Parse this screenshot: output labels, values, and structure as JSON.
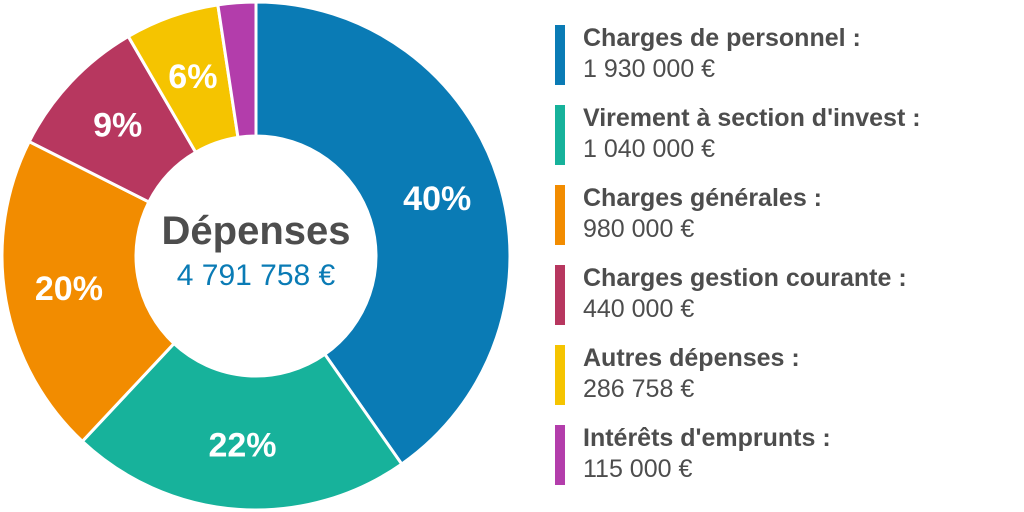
{
  "chart_data": {
    "type": "pie",
    "center": {
      "title": "Dépenses",
      "total": "4 791 758 €"
    },
    "slices": [
      {
        "name": "Charges de personnel :",
        "value": 1930000,
        "value_label": "1 930 000 €",
        "percent_label": "40%",
        "color": "#0a7bb5"
      },
      {
        "name": "Virement à section d'invest :",
        "value": 1040000,
        "value_label": "1 040 000 €",
        "percent_label": "22%",
        "color": "#17b29b"
      },
      {
        "name": "Charges générales :",
        "value": 980000,
        "value_label": "980 000 €",
        "percent_label": "20%",
        "color": "#f28c00"
      },
      {
        "name": "Charges gestion courante :",
        "value": 440000,
        "value_label": "440 000 €",
        "percent_label": "9%",
        "color": "#b7375f"
      },
      {
        "name": "Autres dépenses :",
        "value": 286758,
        "value_label": "286 758 €",
        "percent_label": "6%",
        "color": "#f5c400"
      },
      {
        "name": "Intérêts d'emprunts :",
        "value": 115000,
        "value_label": "115 000 €",
        "percent_label": "",
        "color": "#b33dab"
      }
    ],
    "colors": {
      "title": "#4d4d4d",
      "total": "#0a7bb5"
    }
  }
}
